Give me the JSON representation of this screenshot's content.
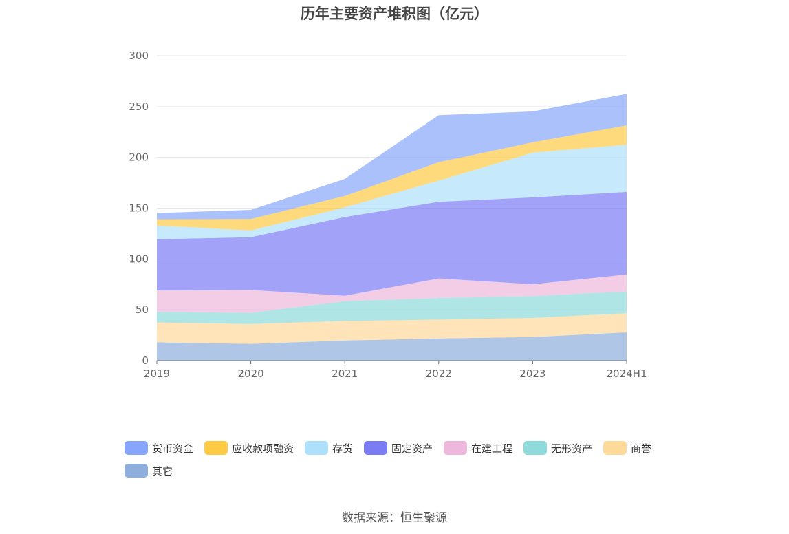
{
  "chart_data": {
    "type": "area",
    "stacked": true,
    "title": "历年主要资产堆积图（亿元）",
    "categories": [
      "2019",
      "2020",
      "2021",
      "2022",
      "2023",
      "2024H1"
    ],
    "ylim": [
      0,
      300
    ],
    "yticks": [
      0,
      50,
      100,
      150,
      200,
      250,
      300
    ],
    "grid": true,
    "legend_position": "bottom",
    "series": [
      {
        "name": "其它",
        "color": "#8eaedb",
        "values": [
          18,
          16.5,
          19.8,
          21.8,
          23.2,
          27.8
        ]
      },
      {
        "name": "商誉",
        "color": "#fdd99a",
        "values": [
          19.5,
          19.5,
          19.2,
          18.5,
          18.8,
          18.8
        ]
      },
      {
        "name": "无形资产",
        "color": "#8fdada",
        "values": [
          10.5,
          11,
          19.5,
          21.3,
          21.5,
          21.5
        ]
      },
      {
        "name": "在建工程",
        "color": "#eeb8dc",
        "values": [
          21,
          22.5,
          5.3,
          19.2,
          11.6,
          16.6
        ]
      },
      {
        "name": "固定资产",
        "color": "#7b7cf5",
        "values": [
          50.5,
          52,
          77.5,
          75.5,
          85.5,
          81.3
        ]
      },
      {
        "name": "存货",
        "color": "#aee0fb",
        "values": [
          13.5,
          6.5,
          9.5,
          20.8,
          44,
          46.5
        ]
      },
      {
        "name": "应收款项融资",
        "color": "#ffcb45",
        "values": [
          6,
          11.3,
          11.2,
          18.2,
          10.2,
          19
        ]
      },
      {
        "name": "货币资金",
        "color": "#87a6fb",
        "values": [
          6.2,
          9,
          16.8,
          46.3,
          30.4,
          31
        ]
      }
    ]
  },
  "legend_order": [
    "货币资金",
    "应收款项融资",
    "存货",
    "固定资产",
    "在建工程",
    "无形资产",
    "商誉",
    "其它"
  ],
  "source_text": "数据来源：恒生聚源"
}
